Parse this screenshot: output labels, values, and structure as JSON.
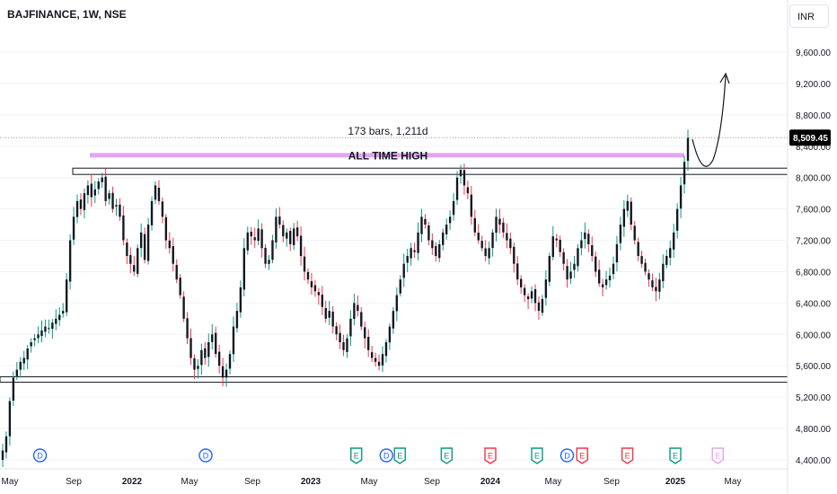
{
  "header": {
    "symbol": "BAJFINANCE, 1W, NSE",
    "currency": "INR"
  },
  "colors": {
    "up": "#089981",
    "down": "#f23645",
    "body": "#131722",
    "ath_band": "#e1a6ee",
    "grid": "#f0f3fa",
    "axis_text": "#131722",
    "price_label_bg": "#000000",
    "dividend": "#2962ff",
    "earnings_past": "#089981",
    "earnings_future": "#f23645",
    "earnings_upcoming": "#e1a6ee"
  },
  "chart_data": {
    "type": "candlestick",
    "y_ticks": [
      "9,600.00",
      "9,200.00",
      "8,800.00",
      "8,400.00",
      "8,000.00",
      "7,600.00",
      "7,200.00",
      "6,800.00",
      "6,400.00",
      "6,000.00",
      "5,600.00",
      "5,200.00",
      "4,800.00",
      "4,400.00"
    ],
    "y_tick_values": [
      9600,
      9200,
      8800,
      8400,
      8000,
      7600,
      7200,
      6800,
      6400,
      6000,
      5600,
      5200,
      4800,
      4400
    ],
    "ylim": [
      4380,
      10100
    ],
    "x_ticks": [
      {
        "label": "May",
        "date": "2021-05"
      },
      {
        "label": "Sep",
        "date": "2021-09"
      },
      {
        "label": "2022",
        "date": "2022-01"
      },
      {
        "label": "May",
        "date": "2022-05"
      },
      {
        "label": "Sep",
        "date": "2022-09"
      },
      {
        "label": "2023",
        "date": "2023-01"
      },
      {
        "label": "May",
        "date": "2023-05"
      },
      {
        "label": "Sep",
        "date": "2023-09"
      },
      {
        "label": "2024",
        "date": "2024-01"
      },
      {
        "label": "May",
        "date": "2024-05"
      },
      {
        "label": "Sep",
        "date": "2024-09"
      },
      {
        "label": "2025",
        "date": "2025-01"
      },
      {
        "label": "May",
        "date": "2025-05"
      }
    ],
    "bold_x_ticks": [
      "2022",
      "2023",
      "2024",
      "2025"
    ],
    "last_price": "8,509.45",
    "last_price_value": 8509.45,
    "measure_label": "173 bars, 1,211d",
    "annotation": "ALL TIME HIGH",
    "ath_level": 8290,
    "resistance_zone": [
      8040,
      8120
    ],
    "support_zone": [
      5390,
      5460
    ],
    "projection": "upward curved arrow toward 9,300",
    "closes": [
      4520,
      4700,
      5150,
      5450,
      5550,
      5650,
      5700,
      5820,
      5900,
      5950,
      6000,
      6050,
      6100,
      6080,
      6150,
      6200,
      6250,
      6300,
      6700,
      7200,
      7500,
      7700,
      7600,
      7800,
      7900,
      7750,
      7850,
      7950,
      8000,
      7700,
      7800,
      7600,
      7650,
      7500,
      7200,
      7000,
      6900,
      6800,
      7100,
      7300,
      6950,
      7400,
      7700,
      7900,
      7700,
      7500,
      7200,
      7100,
      6900,
      6700,
      6500,
      6200,
      5950,
      5700,
      5550,
      5600,
      5800,
      5700,
      5900,
      6000,
      5750,
      5600,
      5450,
      5550,
      5750,
      6100,
      6300,
      6600,
      7100,
      7300,
      7250,
      7200,
      7350,
      7100,
      6900,
      6950,
      7200,
      7500,
      7400,
      7250,
      7300,
      7150,
      7350,
      7250,
      7000,
      6800,
      6700,
      6600,
      6550,
      6500,
      6350,
      6200,
      6300,
      6100,
      6000,
      5900,
      5800,
      5950,
      6200,
      6400,
      6300,
      6100,
      5950,
      5800,
      5700,
      5650,
      5600,
      5750,
      5900,
      6100,
      6300,
      6500,
      6700,
      6900,
      7000,
      7100,
      7050,
      7300,
      7500,
      7400,
      7200,
      7100,
      7000,
      7150,
      7300,
      7400,
      7500,
      7700,
      8000,
      8100,
      7900,
      7800,
      7500,
      7300,
      7200,
      7100,
      7000,
      7100,
      7300,
      7500,
      7400,
      7300,
      7200,
      7100,
      6900,
      6700,
      6600,
      6500,
      6450,
      6550,
      6400,
      6300,
      6450,
      6700,
      7000,
      7250,
      7200,
      7050,
      6900,
      6700,
      6800,
      6900,
      7100,
      7200,
      7300,
      7150,
      7000,
      6800,
      6650,
      6600,
      6700,
      6750,
      6900,
      7150,
      7400,
      7600,
      7700,
      7400,
      7200,
      7000,
      6900,
      6800,
      6700,
      6600,
      6550,
      6700,
      6900,
      7000,
      7100,
      7300,
      7600,
      7900,
      8200,
      8509
    ]
  },
  "events": [
    {
      "type": "D",
      "state": "past",
      "date": "2021-07"
    },
    {
      "type": "D",
      "state": "past",
      "date": "2022-06"
    },
    {
      "type": "E",
      "state": "past",
      "date": "2023-04"
    },
    {
      "type": "D",
      "state": "past",
      "date": "2023-06"
    },
    {
      "type": "E",
      "state": "past",
      "date": "2023-06"
    },
    {
      "type": "E",
      "state": "past",
      "date": "2023-10"
    },
    {
      "type": "E",
      "state": "miss",
      "date": "2024-01"
    },
    {
      "type": "E",
      "state": "past",
      "date": "2024-04"
    },
    {
      "type": "D",
      "state": "past",
      "date": "2024-06"
    },
    {
      "type": "E",
      "state": "miss",
      "date": "2024-07"
    },
    {
      "type": "E",
      "state": "miss",
      "date": "2024-10"
    },
    {
      "type": "E",
      "state": "past",
      "date": "2025-01"
    },
    {
      "type": "E",
      "state": "upcoming",
      "date": "2025-04"
    }
  ]
}
